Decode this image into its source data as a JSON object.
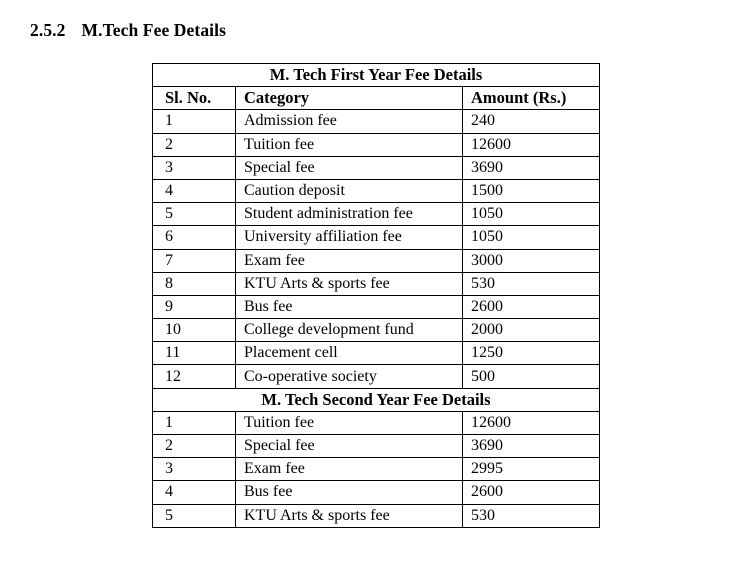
{
  "document": {
    "section_number": "2.5.2",
    "section_title": "M.Tech Fee Details"
  },
  "fee_table": {
    "columns": [
      "Sl. No.",
      "Category",
      "Amount (Rs.)"
    ],
    "sections": [
      {
        "title": "M. Tech First Year Fee Details",
        "rows": [
          [
            "1",
            "Admission fee",
            "240"
          ],
          [
            "2",
            "Tuition fee",
            "12600"
          ],
          [
            "3",
            "Special fee",
            "3690"
          ],
          [
            "4",
            "Caution deposit",
            "1500"
          ],
          [
            "5",
            "Student administration fee",
            "1050"
          ],
          [
            "6",
            "University affiliation fee",
            "1050"
          ],
          [
            "7",
            "Exam fee",
            "3000"
          ],
          [
            "8",
            "KTU Arts & sports fee",
            "530"
          ],
          [
            "9",
            "Bus fee",
            "2600"
          ],
          [
            "10",
            "College development fund",
            "2000"
          ],
          [
            "11",
            "Placement cell",
            "1250"
          ],
          [
            "12",
            "Co-operative society",
            "500"
          ]
        ]
      },
      {
        "title": "M. Tech Second Year Fee Details",
        "rows": [
          [
            "1",
            "Tuition fee",
            "12600"
          ],
          [
            "2",
            "Special fee",
            "3690"
          ],
          [
            "3",
            "Exam fee",
            "2995"
          ],
          [
            "4",
            "Bus fee",
            "2600"
          ],
          [
            "5",
            "KTU Arts & sports fee",
            "530"
          ]
        ]
      }
    ]
  },
  "colors": {
    "background": "#ffffff",
    "text": "#000000",
    "table_border": "#000000"
  }
}
